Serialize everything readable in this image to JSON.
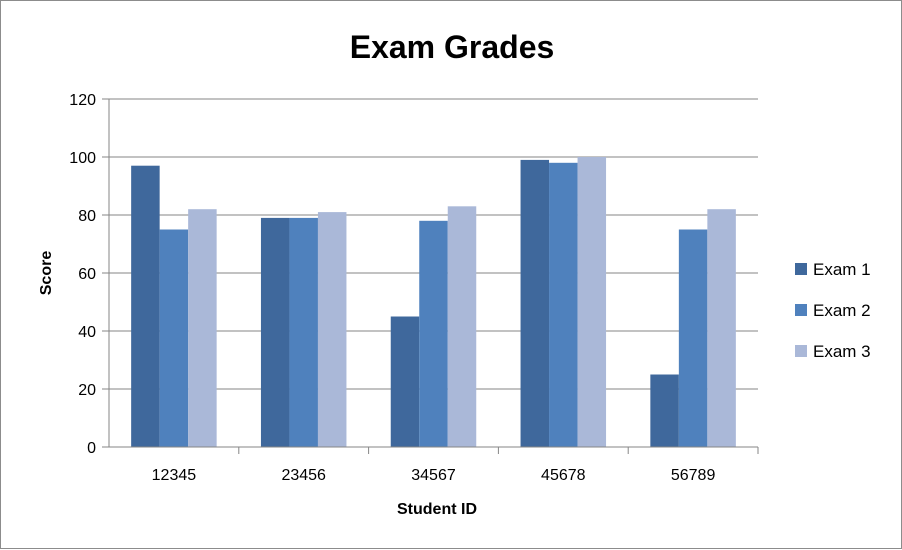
{
  "chart_data": {
    "type": "bar",
    "title": "Exam Grades",
    "xlabel": "Student ID",
    "ylabel": "Score",
    "categories": [
      "12345",
      "23456",
      "34567",
      "45678",
      "56789"
    ],
    "ylim": [
      0,
      120
    ],
    "yticks": [
      0,
      20,
      40,
      60,
      80,
      100,
      120
    ],
    "grid": true,
    "legend_position": "right",
    "series": [
      {
        "name": "Exam 1",
        "color": "#3F689C",
        "values": [
          97,
          79,
          45,
          99,
          25
        ]
      },
      {
        "name": "Exam 2",
        "color": "#4F81BD",
        "values": [
          75,
          79,
          78,
          98,
          75
        ]
      },
      {
        "name": "Exam 3",
        "color": "#AAB8D8",
        "values": [
          82,
          81,
          83,
          100,
          82
        ]
      }
    ]
  }
}
